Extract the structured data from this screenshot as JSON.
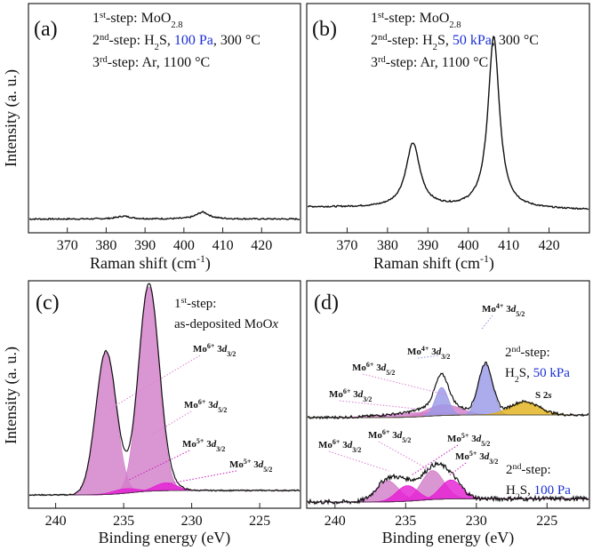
{
  "colors": {
    "ink": "#111111",
    "blue_text": "#1a2fd6",
    "mo6": "#d27fc9",
    "mo6_label": "#dc7fd0",
    "mo5": "#e51fd4",
    "mo5_label": "#c51cb8",
    "mo4": "#9a98e6",
    "mo4_label": "#8f8fe8",
    "s2s": "#e2b21c",
    "s2s_label": "#e0a812"
  },
  "chart_data": [
    {
      "id": "a",
      "type": "line",
      "panel_label": "(a)",
      "xlabel_main": "Raman shift (cm",
      "xlabel_sup": "-1",
      "xlabel_end": ")",
      "ylabel": "Intensity (a. u.)",
      "xlim": [
        360,
        430
      ],
      "ylim": [
        0,
        1
      ],
      "xticks": [
        370,
        380,
        390,
        400,
        410,
        420
      ],
      "annotation": {
        "line1": {
          "a": "1",
          "sup": "st",
          "b": "-step: MoO",
          "sub": "2.8"
        },
        "line2": {
          "a": "2",
          "sup": "nd",
          "b": "-step: H",
          "sub": "2",
          "c": "S, ",
          "blue": "100 Pa",
          "d": ", 300 °C"
        },
        "line3": {
          "a": "3",
          "sup": "rd",
          "b": "-step: Ar, 1100 °C"
        }
      },
      "baseline": 0.06,
      "peaks": [
        {
          "x": 384.5,
          "h": 0.012,
          "w": 2.2
        },
        {
          "x": 404.8,
          "h": 0.03,
          "w": 2.0
        }
      ]
    },
    {
      "id": "b",
      "type": "line",
      "panel_label": "(b)",
      "xlabel_main": "Raman shift (cm",
      "xlabel_sup": "-1",
      "xlabel_end": ")",
      "xlim": [
        360,
        430
      ],
      "ylim": [
        0,
        1
      ],
      "xticks": [
        370,
        380,
        390,
        400,
        410,
        420
      ],
      "annotation": {
        "line1": {
          "a": "1",
          "sup": "st",
          "b": "-step: MoO",
          "sub": "2.8"
        },
        "line2": {
          "a": "2",
          "sup": "nd",
          "b": "-step: H",
          "sub": "2",
          "c": "S, ",
          "blue": "50 kPa",
          "d": ", 300 °C"
        },
        "line3": {
          "a": "3",
          "sup": "rd",
          "b": "-step: Ar, 1100 °C"
        }
      },
      "baseline": 0.1,
      "peaks": [
        {
          "x": 386.3,
          "h": 0.28,
          "w": 2.1
        },
        {
          "x": 406.3,
          "h": 0.75,
          "w": 1.7
        }
      ]
    },
    {
      "id": "c",
      "type": "area",
      "panel_label": "(c)",
      "xlabel": "Binding energy (eV)",
      "ylabel": "Intensity (a. u.)",
      "xlim": [
        242,
        222
      ],
      "ylim": [
        0,
        1
      ],
      "xticks": [
        240,
        235,
        230,
        225
      ],
      "annotation": {
        "line1": {
          "a": "1",
          "sup": "st",
          "b": "-step:"
        },
        "line2": {
          "a": "as-deposited MoO",
          "it": "x"
        }
      },
      "baseline": 0.06,
      "components": [
        {
          "name": "Mo6+ 3d3/2",
          "x": 236.3,
          "h": 0.64,
          "w": 0.75,
          "color_key": "mo6"
        },
        {
          "name": "Mo6+ 3d5/2",
          "x": 233.15,
          "h": 0.92,
          "w": 0.75,
          "color_key": "mo6"
        },
        {
          "name": "Mo5+ 3d3/2",
          "x": 234.9,
          "h": 0.02,
          "w": 0.9,
          "color_key": "mo5"
        },
        {
          "name": "Mo5+ 3d5/2",
          "x": 231.9,
          "h": 0.035,
          "w": 0.8,
          "color_key": "mo5"
        }
      ],
      "peak_labels": [
        {
          "ion": "Mo",
          "ch": "6+",
          "orb": "3",
          "d": "d",
          "j": "3/2",
          "color_key": "mo6_label"
        },
        {
          "ion": "Mo",
          "ch": "6+",
          "orb": "3",
          "d": "d",
          "j": "5/2",
          "color_key": "mo6_label"
        },
        {
          "ion": "Mo",
          "ch": "5+",
          "orb": "3",
          "d": "d",
          "j": "3/2",
          "color_key": "mo5_label"
        },
        {
          "ion": "Mo",
          "ch": "5+",
          "orb": "3",
          "d": "d",
          "j": "5/2",
          "color_key": "mo5_label"
        }
      ]
    },
    {
      "id": "d",
      "type": "area",
      "panel_label": "(d)",
      "xlabel": "Binding energy (eV)",
      "xlim": [
        242,
        222
      ],
      "ylim": [
        0,
        1
      ],
      "xticks": [
        240,
        235,
        230,
        225
      ],
      "upper": {
        "annotation": {
          "line1": {
            "a": "2",
            "sup": "nd",
            "b": "-step:"
          },
          "line2": {
            "a": "H",
            "sub": "2",
            "c": "S, ",
            "blue": "50 kPa"
          }
        },
        "baseline": 0.62,
        "components": [
          {
            "name": "Mo6+ 3d3/2",
            "x": 234.5,
            "h": 0.03,
            "w": 2.2,
            "color_key": "mo6"
          },
          {
            "name": "Mo6+ 3d5/2",
            "x": 232.3,
            "h": 0.08,
            "w": 1.2,
            "color_key": "mo6"
          },
          {
            "name": "Mo4+ 3d3/2",
            "x": 232.45,
            "h": 0.21,
            "w": 0.45,
            "color_key": "mo4"
          },
          {
            "name": "Mo4+ 3d5/2",
            "x": 229.35,
            "h": 0.38,
            "w": 0.5,
            "color_key": "mo4"
          },
          {
            "name": "S 2s",
            "x": 226.6,
            "h": 0.1,
            "w": 1.05,
            "color_key": "s2s"
          }
        ],
        "peak_labels": [
          {
            "ion": "Mo",
            "ch": "4+",
            "orb": "3",
            "d": "d",
            "j": "5/2",
            "color_key": "mo4_label"
          },
          {
            "ion": "Mo",
            "ch": "4+",
            "orb": "3",
            "d": "d",
            "j": "3/2",
            "color_key": "mo4_label"
          },
          {
            "ion": "Mo",
            "ch": "6+",
            "orb": "3",
            "d": "d",
            "j": "5/2",
            "color_key": "mo6_label"
          },
          {
            "ion": "Mo",
            "ch": "6+",
            "orb": "3",
            "d": "d",
            "j": "3/2",
            "color_key": "mo6_label"
          },
          {
            "text_a": "S 2",
            "text_it": "s",
            "color_key": "s2s_label"
          }
        ]
      },
      "lower": {
        "annotation": {
          "line1": {
            "a": "2",
            "sup": "nd",
            "b": "-step:"
          },
          "line2": {
            "a": "H",
            "sub": "2",
            "c": "S, ",
            "blue": "100 Pa"
          }
        },
        "baseline": 0.16,
        "components": [
          {
            "name": "Mo6+ 3d3/2",
            "x": 236.3,
            "h": 0.19,
            "w": 0.8,
            "color_key": "mo6"
          },
          {
            "name": "Mo6+ 3d5/2",
            "x": 233.1,
            "h": 0.26,
            "w": 0.8,
            "color_key": "mo6"
          },
          {
            "name": "Mo5+ 3d3/2",
            "x": 234.9,
            "h": 0.14,
            "w": 0.75,
            "color_key": "mo5"
          },
          {
            "name": "Mo5+ 3d5/2",
            "x": 231.8,
            "h": 0.17,
            "w": 0.75,
            "color_key": "mo5"
          }
        ],
        "peak_labels": [
          {
            "ion": "Mo",
            "ch": "6+",
            "orb": "3",
            "d": "d",
            "j": "3/2",
            "color_key": "mo6_label"
          },
          {
            "ion": "Mo",
            "ch": "6+",
            "orb": "3",
            "d": "d",
            "j": "5/2",
            "color_key": "mo6_label"
          },
          {
            "ion": "Mo",
            "ch": "5+",
            "orb": "3",
            "d": "d",
            "j": "5/2",
            "color_key": "mo5_label"
          },
          {
            "ion": "Mo",
            "ch": "5+",
            "orb": "3",
            "d": "d",
            "j": "3/2",
            "color_key": "mo5_label"
          }
        ]
      }
    }
  ]
}
